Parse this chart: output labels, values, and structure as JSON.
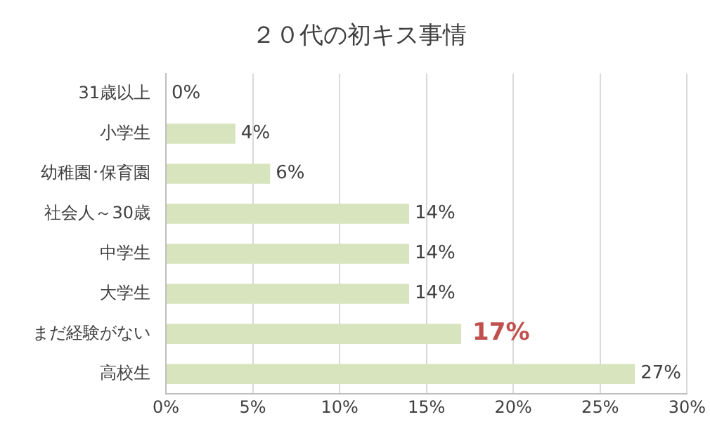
{
  "chart_data": {
    "type": "bar",
    "orientation": "horizontal",
    "title": "２０代の初キス事情",
    "categories": [
      "31歳以上",
      "小学生",
      "幼稚園･保育園",
      "社会人～30歳",
      "中学生",
      "大学生",
      "まだ経験がない",
      "高校生"
    ],
    "values": [
      0,
      4,
      6,
      14,
      14,
      14,
      17,
      27
    ],
    "value_labels": [
      "0%",
      "4%",
      "6%",
      "14%",
      "14%",
      "14%",
      null,
      "27%"
    ],
    "annotations": [
      {
        "text": "17%",
        "x": 17,
        "y": "まだ経験がない"
      }
    ],
    "color": "#d7e4bd",
    "xlim": [
      0,
      30
    ],
    "xticks": [
      {
        "value": 0,
        "label": "0%"
      },
      {
        "value": 5,
        "label": "5%"
      },
      {
        "value": 10,
        "label": "10%"
      },
      {
        "value": 15,
        "label": "15%"
      },
      {
        "value": 20,
        "label": "20%"
      },
      {
        "value": 25,
        "label": "25%"
      },
      {
        "value": 30,
        "label": "30%"
      }
    ],
    "grid": "x",
    "legend": false
  }
}
